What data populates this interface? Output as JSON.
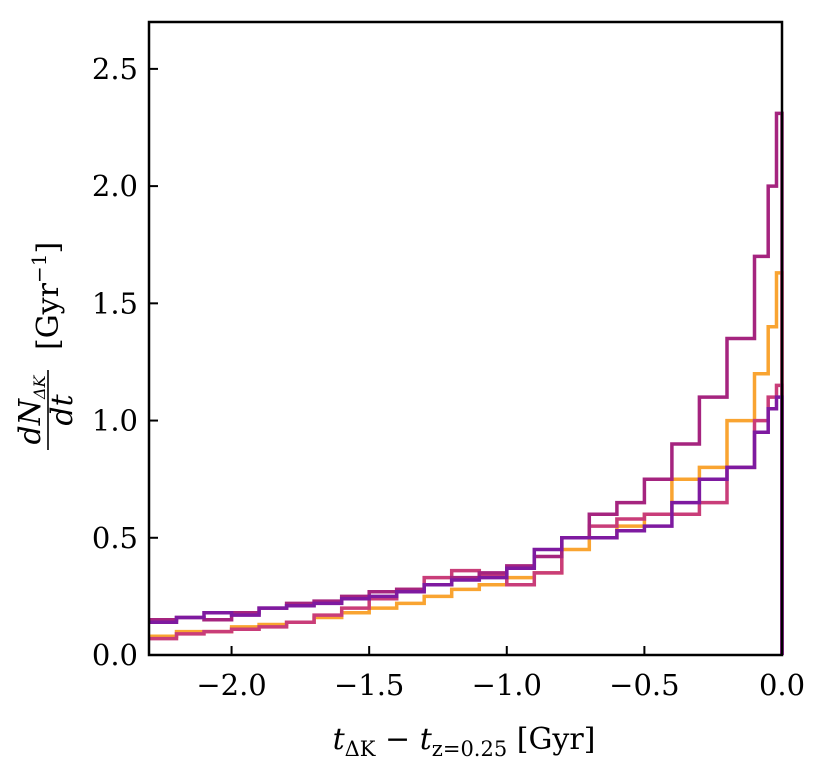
{
  "chart_data": {
    "type": "line",
    "step": true,
    "xlabel": {
      "base": "t",
      "sub1": "ΔK",
      "minus": " − ",
      "sub2": "z=0.25",
      "unit": " [Gyr]"
    },
    "ylabel": {
      "numerator": "dN",
      "numerator_sub": "ΔK",
      "denominator": "dt",
      "unit_prefix": "[Gyr",
      "unit_exp": "−1",
      "unit_suffix": "]"
    },
    "xlim": [
      -2.3,
      0.0
    ],
    "ylim": [
      0.0,
      2.7
    ],
    "x_ticks": [
      -2.0,
      -1.5,
      -1.0,
      -0.5,
      0.0
    ],
    "x_tick_labels": [
      "−2.0",
      "−1.5",
      "−1.0",
      "−0.5",
      "0.0"
    ],
    "y_ticks": [
      0.0,
      0.5,
      1.0,
      1.5,
      2.0,
      2.5
    ],
    "y_tick_labels": [
      "0.0",
      "0.5",
      "1.0",
      "1.5",
      "2.0",
      "2.5"
    ],
    "grid": false,
    "series": [
      {
        "color": "#f9a431",
        "x": [
          -2.3,
          -2.2,
          -2.1,
          -2.0,
          -1.9,
          -1.8,
          -1.7,
          -1.6,
          -1.5,
          -1.4,
          -1.3,
          -1.2,
          -1.1,
          -1.0,
          -0.9,
          -0.8,
          -0.7,
          -0.6,
          -0.5,
          -0.4,
          -0.3,
          -0.2,
          -0.1,
          -0.05,
          -0.02,
          0.0
        ],
        "y": [
          0.08,
          0.1,
          0.1,
          0.12,
          0.13,
          0.14,
          0.16,
          0.18,
          0.2,
          0.22,
          0.25,
          0.28,
          0.3,
          0.33,
          0.35,
          0.45,
          0.5,
          0.55,
          0.6,
          0.75,
          0.8,
          1.0,
          1.2,
          1.4,
          1.63,
          0.0
        ]
      },
      {
        "color": "#c93d79",
        "x": [
          -2.3,
          -2.2,
          -2.1,
          -2.0,
          -1.9,
          -1.8,
          -1.7,
          -1.6,
          -1.5,
          -1.4,
          -1.3,
          -1.2,
          -1.1,
          -1.0,
          -0.9,
          -0.8,
          -0.7,
          -0.6,
          -0.5,
          -0.4,
          -0.3,
          -0.2,
          -0.1,
          -0.05,
          -0.02,
          0.0
        ],
        "y": [
          0.07,
          0.09,
          0.1,
          0.11,
          0.12,
          0.14,
          0.17,
          0.2,
          0.24,
          0.28,
          0.33,
          0.36,
          0.34,
          0.3,
          0.35,
          0.5,
          0.55,
          0.58,
          0.6,
          0.6,
          0.65,
          0.8,
          1.0,
          1.1,
          1.15,
          0.0
        ]
      },
      {
        "color": "#a5247f",
        "x": [
          -2.3,
          -2.2,
          -2.1,
          -2.0,
          -1.9,
          -1.8,
          -1.7,
          -1.6,
          -1.5,
          -1.4,
          -1.3,
          -1.2,
          -1.1,
          -1.0,
          -0.9,
          -0.8,
          -0.7,
          -0.6,
          -0.5,
          -0.4,
          -0.3,
          -0.2,
          -0.1,
          -0.05,
          -0.02,
          0.0
        ],
        "y": [
          0.15,
          0.16,
          0.15,
          0.18,
          0.2,
          0.22,
          0.23,
          0.25,
          0.27,
          0.28,
          0.3,
          0.33,
          0.35,
          0.38,
          0.42,
          0.5,
          0.6,
          0.65,
          0.75,
          0.9,
          1.1,
          1.35,
          1.7,
          2.0,
          2.31,
          0.0
        ]
      },
      {
        "color": "#7e1aa0",
        "x": [
          -2.3,
          -2.2,
          -2.1,
          -2.0,
          -1.9,
          -1.8,
          -1.7,
          -1.6,
          -1.5,
          -1.4,
          -1.3,
          -1.2,
          -1.1,
          -1.0,
          -0.9,
          -0.8,
          -0.7,
          -0.6,
          -0.5,
          -0.4,
          -0.3,
          -0.2,
          -0.1,
          -0.05,
          -0.02,
          0.0
        ],
        "y": [
          0.14,
          0.16,
          0.18,
          0.17,
          0.2,
          0.21,
          0.22,
          0.24,
          0.25,
          0.27,
          0.3,
          0.32,
          0.33,
          0.37,
          0.45,
          0.5,
          0.5,
          0.53,
          0.55,
          0.65,
          0.75,
          0.8,
          0.95,
          1.05,
          1.1,
          0.0
        ]
      }
    ]
  }
}
